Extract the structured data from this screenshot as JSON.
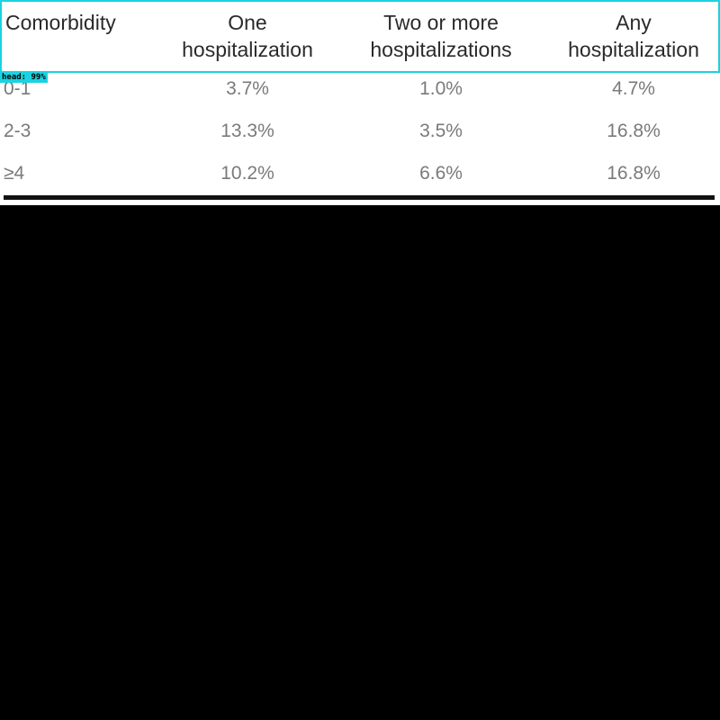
{
  "table": {
    "headers": {
      "c0": [
        "Comorbidity"
      ],
      "c1": [
        "One",
        "hospitalization"
      ],
      "c2": [
        "Two or more",
        "hospitalizations"
      ],
      "c3": [
        "Any",
        "hospitalization"
      ]
    },
    "rows": [
      [
        "0-1",
        "3.7%",
        "1.0%",
        "4.7%"
      ],
      [
        "2-3",
        "13.3%",
        "3.5%",
        "16.8%"
      ],
      [
        "≥4",
        "10.2%",
        "6.6%",
        "16.8%"
      ]
    ]
  },
  "detection": {
    "label": "head: 99%",
    "box_color": "#19d3e0"
  },
  "colors": {
    "header_text": "#2a2a2a",
    "body_text": "#7a7a7a",
    "rule": "#111111",
    "background": "#000000"
  }
}
